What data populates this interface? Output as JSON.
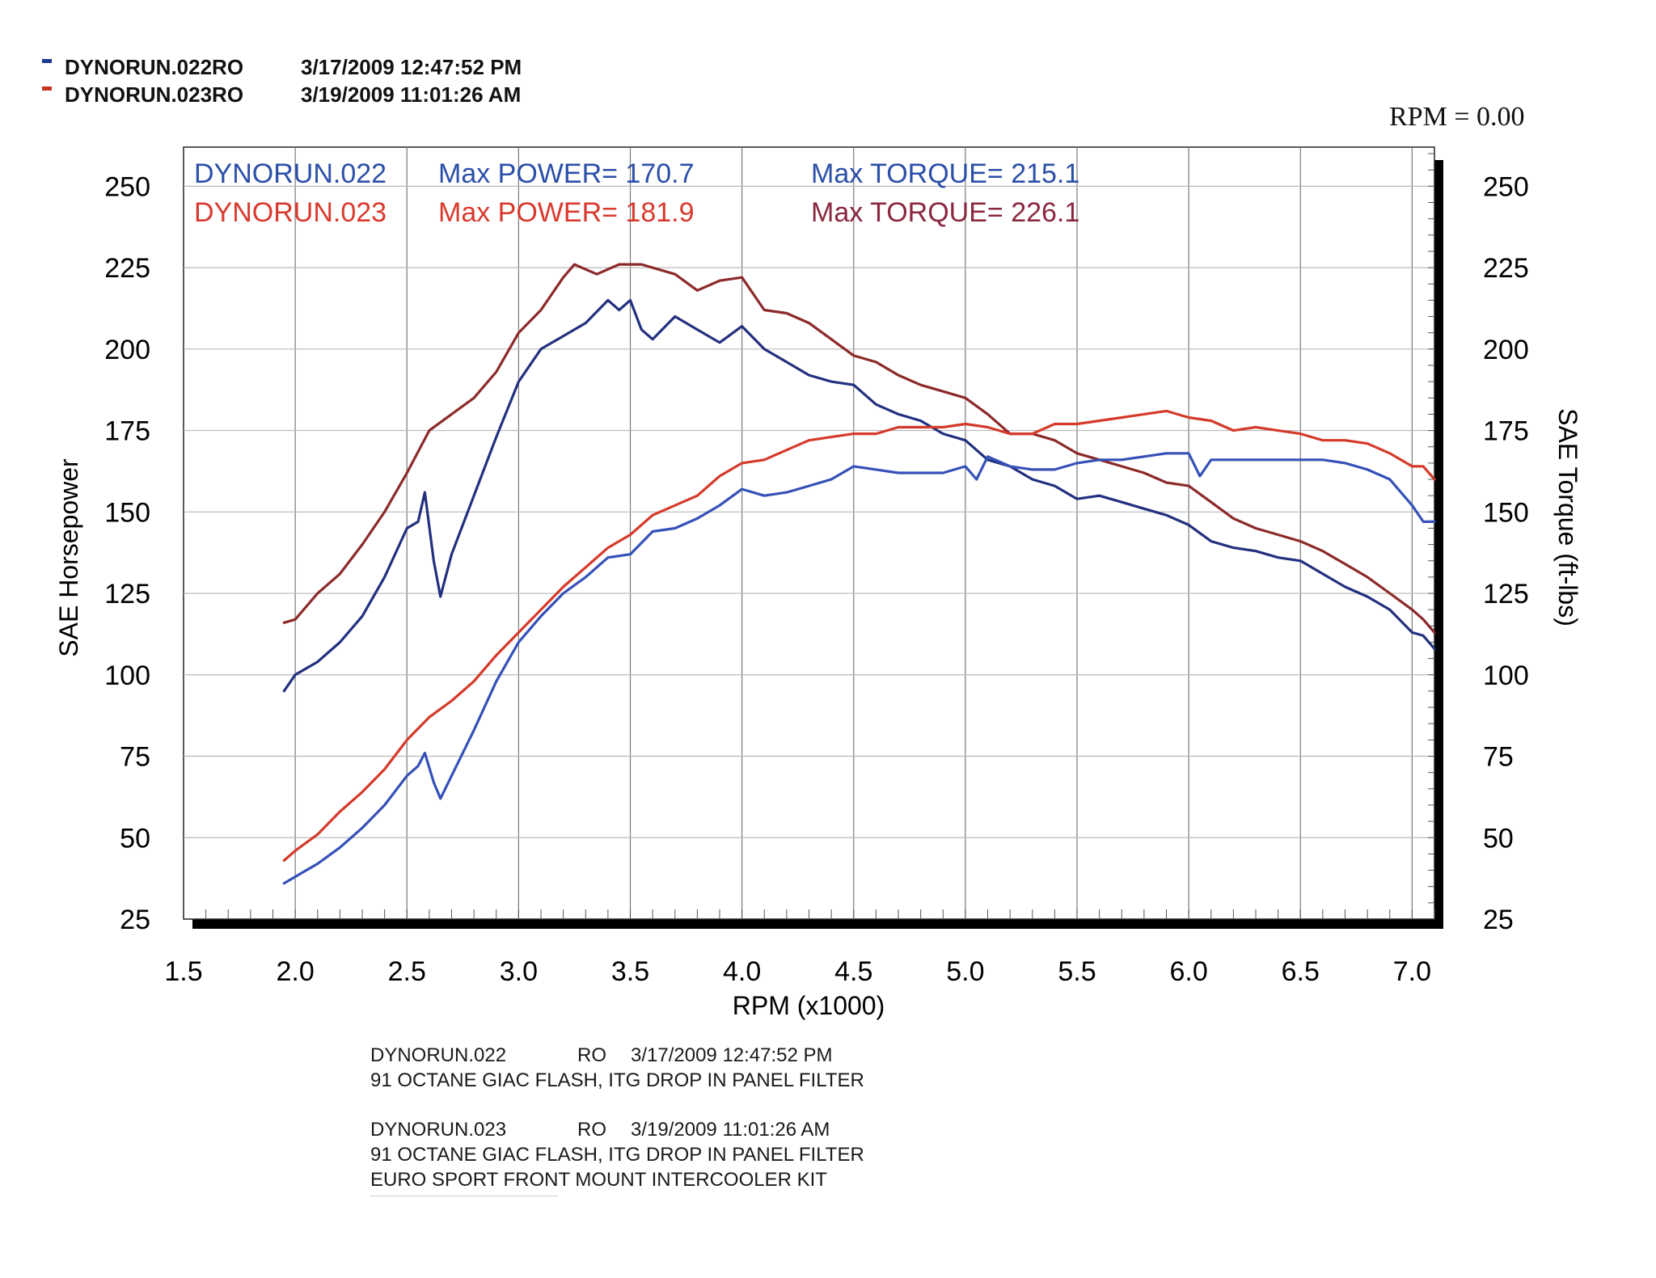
{
  "header": {
    "runs": [
      {
        "label": "DYNORUN.022RO",
        "datetime": "3/17/2009 12:47:52 PM",
        "color": "#1f3a93"
      },
      {
        "label": "DYNORUN.023RO",
        "datetime": "3/19/2009 11:01:26 AM",
        "color": "#c8321e"
      }
    ],
    "rpm_readout": "RPM = 0.00"
  },
  "chart_data": {
    "type": "line",
    "xlabel": "RPM (x1000)",
    "ylabel_left": "SAE Horsepower",
    "ylabel_right": "SAE Torque (ft-lbs)",
    "xlim": [
      1.5,
      7.1
    ],
    "ylim": [
      25,
      262
    ],
    "x_ticks": [
      "1.5",
      "2.0",
      "2.5",
      "3.0",
      "3.5",
      "4.0",
      "4.5",
      "5.0",
      "5.5",
      "6.0",
      "6.5",
      "7.0"
    ],
    "y_ticks": [
      "25",
      "50",
      "75",
      "100",
      "125",
      "150",
      "175",
      "200",
      "225",
      "250"
    ],
    "grid": true,
    "annotations": [
      {
        "run": "DYNORUN.022",
        "power": "Max POWER= 170.7",
        "torque": "Max TORQUE= 215.1",
        "color": "#2c4fa8",
        "torque_color": "#2c4fa8"
      },
      {
        "run": "DYNORUN.023",
        "power": "Max POWER= 181.9",
        "torque": "Max TORQUE= 226.1",
        "color": "#d93a2e",
        "torque_color": "#8a2840"
      }
    ],
    "series": [
      {
        "name": "DYNORUN.022",
        "measure": "torque",
        "color": "#22307f",
        "points": [
          [
            1.95,
            95
          ],
          [
            2.0,
            100
          ],
          [
            2.1,
            104
          ],
          [
            2.2,
            110
          ],
          [
            2.3,
            118
          ],
          [
            2.4,
            130
          ],
          [
            2.5,
            145
          ],
          [
            2.55,
            147
          ],
          [
            2.58,
            156
          ],
          [
            2.62,
            135
          ],
          [
            2.65,
            124
          ],
          [
            2.7,
            137
          ],
          [
            2.8,
            155
          ],
          [
            2.9,
            173
          ],
          [
            3.0,
            190
          ],
          [
            3.1,
            200
          ],
          [
            3.2,
            204
          ],
          [
            3.3,
            208
          ],
          [
            3.4,
            215
          ],
          [
            3.45,
            212
          ],
          [
            3.5,
            215
          ],
          [
            3.55,
            206
          ],
          [
            3.6,
            203
          ],
          [
            3.7,
            210
          ],
          [
            3.8,
            206
          ],
          [
            3.9,
            202
          ],
          [
            4.0,
            207
          ],
          [
            4.1,
            200
          ],
          [
            4.2,
            196
          ],
          [
            4.3,
            192
          ],
          [
            4.4,
            190
          ],
          [
            4.5,
            189
          ],
          [
            4.6,
            183
          ],
          [
            4.7,
            180
          ],
          [
            4.8,
            178
          ],
          [
            4.9,
            174
          ],
          [
            5.0,
            172
          ],
          [
            5.1,
            166
          ],
          [
            5.2,
            164
          ],
          [
            5.3,
            160
          ],
          [
            5.4,
            158
          ],
          [
            5.5,
            154
          ],
          [
            5.6,
            155
          ],
          [
            5.7,
            153
          ],
          [
            5.8,
            151
          ],
          [
            5.9,
            149
          ],
          [
            6.0,
            146
          ],
          [
            6.1,
            141
          ],
          [
            6.2,
            139
          ],
          [
            6.3,
            138
          ],
          [
            6.4,
            136
          ],
          [
            6.5,
            135
          ],
          [
            6.6,
            131
          ],
          [
            6.7,
            127
          ],
          [
            6.8,
            124
          ],
          [
            6.9,
            120
          ],
          [
            7.0,
            113
          ],
          [
            7.05,
            112
          ],
          [
            7.1,
            108
          ]
        ]
      },
      {
        "name": "DYNORUN.023",
        "measure": "torque",
        "color": "#8c2a2a",
        "points": [
          [
            1.95,
            116
          ],
          [
            2.0,
            117
          ],
          [
            2.1,
            125
          ],
          [
            2.2,
            131
          ],
          [
            2.3,
            140
          ],
          [
            2.4,
            150
          ],
          [
            2.5,
            162
          ],
          [
            2.6,
            175
          ],
          [
            2.7,
            180
          ],
          [
            2.8,
            185
          ],
          [
            2.9,
            193
          ],
          [
            3.0,
            205
          ],
          [
            3.1,
            212
          ],
          [
            3.2,
            222
          ],
          [
            3.25,
            226
          ],
          [
            3.35,
            223
          ],
          [
            3.45,
            226
          ],
          [
            3.55,
            226
          ],
          [
            3.7,
            223
          ],
          [
            3.8,
            218
          ],
          [
            3.9,
            221
          ],
          [
            4.0,
            222
          ],
          [
            4.1,
            212
          ],
          [
            4.2,
            211
          ],
          [
            4.3,
            208
          ],
          [
            4.4,
            203
          ],
          [
            4.5,
            198
          ],
          [
            4.6,
            196
          ],
          [
            4.7,
            192
          ],
          [
            4.8,
            189
          ],
          [
            4.9,
            187
          ],
          [
            5.0,
            185
          ],
          [
            5.1,
            180
          ],
          [
            5.2,
            174
          ],
          [
            5.3,
            174
          ],
          [
            5.4,
            172
          ],
          [
            5.5,
            168
          ],
          [
            5.6,
            166
          ],
          [
            5.7,
            164
          ],
          [
            5.8,
            162
          ],
          [
            5.9,
            159
          ],
          [
            6.0,
            158
          ],
          [
            6.1,
            153
          ],
          [
            6.2,
            148
          ],
          [
            6.3,
            145
          ],
          [
            6.4,
            143
          ],
          [
            6.5,
            141
          ],
          [
            6.6,
            138
          ],
          [
            6.7,
            134
          ],
          [
            6.8,
            130
          ],
          [
            6.9,
            125
          ],
          [
            7.0,
            120
          ],
          [
            7.05,
            117
          ],
          [
            7.1,
            113
          ]
        ]
      },
      {
        "name": "DYNORUN.022",
        "measure": "power",
        "color": "#3551b8",
        "points": [
          [
            1.95,
            36
          ],
          [
            2.0,
            38
          ],
          [
            2.1,
            42
          ],
          [
            2.2,
            47
          ],
          [
            2.3,
            53
          ],
          [
            2.4,
            60
          ],
          [
            2.5,
            69
          ],
          [
            2.55,
            72
          ],
          [
            2.58,
            76
          ],
          [
            2.62,
            67
          ],
          [
            2.65,
            62
          ],
          [
            2.7,
            69
          ],
          [
            2.8,
            83
          ],
          [
            2.9,
            98
          ],
          [
            3.0,
            110
          ],
          [
            3.1,
            118
          ],
          [
            3.2,
            125
          ],
          [
            3.3,
            130
          ],
          [
            3.4,
            136
          ],
          [
            3.5,
            137
          ],
          [
            3.6,
            144
          ],
          [
            3.7,
            145
          ],
          [
            3.8,
            148
          ],
          [
            3.9,
            152
          ],
          [
            4.0,
            157
          ],
          [
            4.1,
            155
          ],
          [
            4.2,
            156
          ],
          [
            4.3,
            158
          ],
          [
            4.4,
            160
          ],
          [
            4.5,
            164
          ],
          [
            4.6,
            163
          ],
          [
            4.7,
            162
          ],
          [
            4.8,
            162
          ],
          [
            4.9,
            162
          ],
          [
            5.0,
            164
          ],
          [
            5.05,
            160
          ],
          [
            5.1,
            167
          ],
          [
            5.2,
            164
          ],
          [
            5.3,
            163
          ],
          [
            5.4,
            163
          ],
          [
            5.5,
            165
          ],
          [
            5.6,
            166
          ],
          [
            5.7,
            166
          ],
          [
            5.8,
            167
          ],
          [
            5.9,
            168
          ],
          [
            6.0,
            168
          ],
          [
            6.05,
            161
          ],
          [
            6.1,
            166
          ],
          [
            6.2,
            166
          ],
          [
            6.3,
            166
          ],
          [
            6.4,
            166
          ],
          [
            6.5,
            166
          ],
          [
            6.6,
            166
          ],
          [
            6.7,
            165
          ],
          [
            6.8,
            163
          ],
          [
            6.9,
            160
          ],
          [
            7.0,
            152
          ],
          [
            7.05,
            147
          ],
          [
            7.1,
            147
          ]
        ]
      },
      {
        "name": "DYNORUN.023",
        "measure": "power",
        "color": "#d43a2a",
        "points": [
          [
            1.95,
            43
          ],
          [
            2.0,
            46
          ],
          [
            2.1,
            51
          ],
          [
            2.2,
            58
          ],
          [
            2.3,
            64
          ],
          [
            2.4,
            71
          ],
          [
            2.5,
            80
          ],
          [
            2.6,
            87
          ],
          [
            2.7,
            92
          ],
          [
            2.8,
            98
          ],
          [
            2.9,
            106
          ],
          [
            3.0,
            113
          ],
          [
            3.1,
            120
          ],
          [
            3.2,
            127
          ],
          [
            3.3,
            133
          ],
          [
            3.4,
            139
          ],
          [
            3.5,
            143
          ],
          [
            3.6,
            149
          ],
          [
            3.7,
            152
          ],
          [
            3.8,
            155
          ],
          [
            3.9,
            161
          ],
          [
            4.0,
            165
          ],
          [
            4.1,
            166
          ],
          [
            4.2,
            169
          ],
          [
            4.3,
            172
          ],
          [
            4.4,
            173
          ],
          [
            4.5,
            174
          ],
          [
            4.6,
            174
          ],
          [
            4.7,
            176
          ],
          [
            4.8,
            176
          ],
          [
            4.9,
            176
          ],
          [
            5.0,
            177
          ],
          [
            5.1,
            176
          ],
          [
            5.2,
            174
          ],
          [
            5.3,
            174
          ],
          [
            5.4,
            177
          ],
          [
            5.5,
            177
          ],
          [
            5.6,
            178
          ],
          [
            5.7,
            179
          ],
          [
            5.8,
            180
          ],
          [
            5.9,
            181
          ],
          [
            6.0,
            179
          ],
          [
            6.1,
            178
          ],
          [
            6.2,
            175
          ],
          [
            6.3,
            176
          ],
          [
            6.4,
            175
          ],
          [
            6.5,
            174
          ],
          [
            6.6,
            172
          ],
          [
            6.7,
            172
          ],
          [
            6.8,
            171
          ],
          [
            6.9,
            168
          ],
          [
            7.0,
            164
          ],
          [
            7.05,
            164
          ],
          [
            7.1,
            160
          ]
        ]
      }
    ]
  },
  "notes": [
    {
      "run": "DYNORUN.022",
      "code": "RO",
      "datetime": "3/17/2009 12:47:52 PM",
      "lines": [
        "91 OCTANE GIAC FLASH, ITG DROP IN PANEL FILTER"
      ]
    },
    {
      "run": "DYNORUN.023",
      "code": "RO",
      "datetime": "3/19/2009 11:01:26 AM",
      "lines": [
        "91 OCTANE GIAC FLASH, ITG DROP IN PANEL FILTER",
        "EURO SPORT FRONT MOUNT INTERCOOLER KIT"
      ]
    }
  ]
}
